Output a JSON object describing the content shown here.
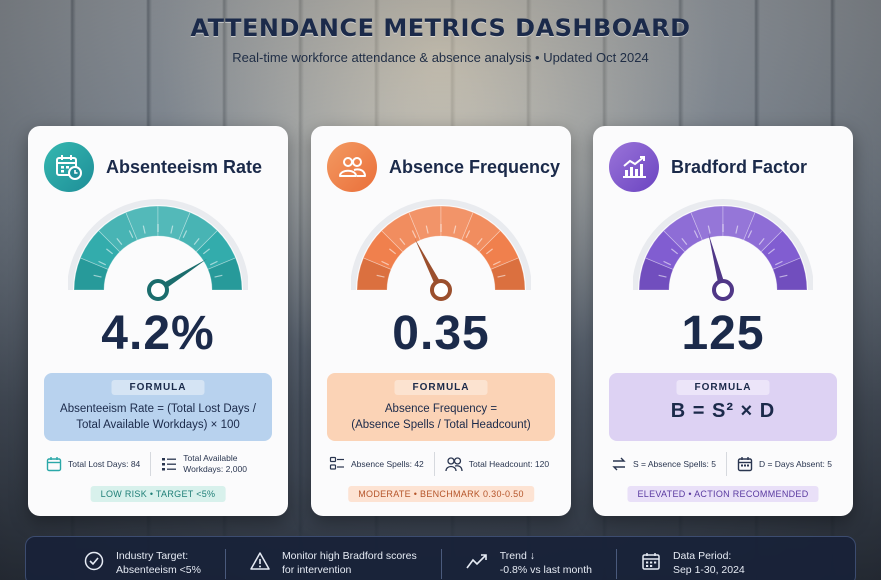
{
  "header": {
    "title": "ATTENDANCE METRICS DASHBOARD",
    "subtitle": "Real-time workforce attendance & absence analysis • Updated Oct 2024"
  },
  "cards": [
    {
      "title": "Absenteeism Rate",
      "icon": "calendar-clock-icon",
      "value": "4.2%",
      "formula_label": "FORMULA",
      "formula_line1": "Absenteeism Rate = (Total Lost Days /",
      "formula_line2": "Total Available Workdays) × 100",
      "stat1_line1": "Total Lost Days: 84",
      "stat2_line1": "Total Available",
      "stat2_line2": "Workdays: 2,000",
      "status": "LOW RISK • TARGET <5%",
      "accent": "#2aa8a8",
      "gauge_level": 0.82
    },
    {
      "title": "Absence Frequency",
      "icon": "people-icon",
      "value": "0.35",
      "formula_label": "FORMULA",
      "formula_line1": "Absence Frequency =",
      "formula_line2": "(Absence Spells / Total Headcount)",
      "stat1_line1": "Absence Spells: 42",
      "stat2_line1": "Total Headcount: 120",
      "status": "MODERATE • BENCHMARK 0.30-0.50",
      "accent": "#ef7a45",
      "gauge_level": 0.35
    },
    {
      "title": "Bradford Factor",
      "icon": "trend-chart-icon",
      "value": "125",
      "formula_label": "FORMULA",
      "formula_text": "B = S² × D",
      "stat1_line1": "S = Absence Spells: 5",
      "stat2_line1": "D = Days Absent: 5",
      "status": "ELEVATED • ACTION RECOMMENDED",
      "accent": "#7b55cf",
      "gauge_level": 0.42
    }
  ],
  "footer": {
    "item1_line1": "Industry Target:",
    "item1_line2": "Absenteeism <5%",
    "item2_line1": "Monitor high Bradford scores",
    "item2_line2": "for intervention",
    "item3_line1": "Trend ↓",
    "item3_line2": "-0.8% vs last month",
    "item4_line1": "Data Period:",
    "item4_line2": "Sep 1-30, 2024"
  }
}
